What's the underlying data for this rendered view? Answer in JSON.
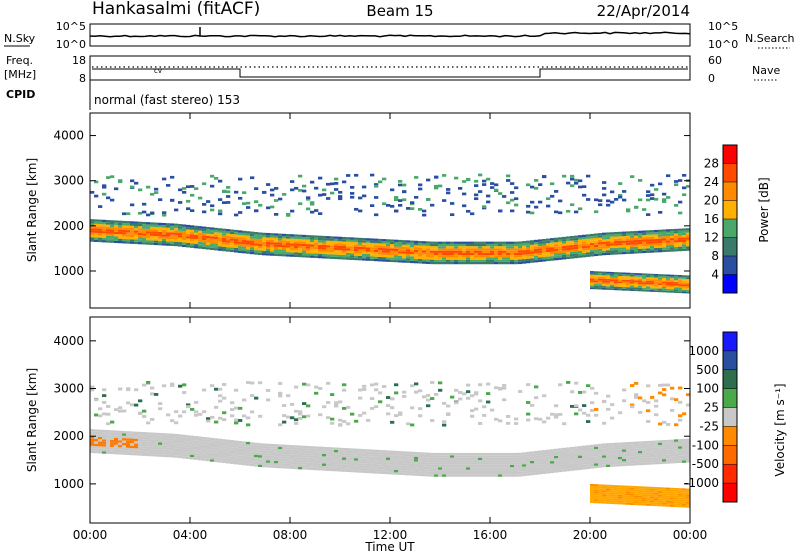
{
  "header": {
    "station": "Hankasalmi (fitACF)",
    "beam": "Beam 15",
    "date": "22/Apr/2014"
  },
  "nsky_panel": {
    "left_label": "N.Sky",
    "right_label": "N.Search",
    "left_ticks": [
      "10^5",
      "10^0"
    ],
    "right_ticks": [
      "10^5",
      "10^0"
    ]
  },
  "freq_panel": {
    "left_label_1": "Freq.",
    "left_label_2": "[MHz]",
    "right_label": "Nave",
    "left_ticks": [
      "18",
      "8"
    ],
    "right_ticks": [
      "60",
      "0"
    ],
    "marker": "cv"
  },
  "cpid": {
    "label": "CPID",
    "program": "normal (fast stereo) 153"
  },
  "power_panel": {
    "ylabel": "Slant Range [km]",
    "yticks": [
      "4000",
      "3000",
      "2000",
      "1000"
    ],
    "scale_label": "Power [dB]",
    "scale_ticks": [
      "28",
      "24",
      "20",
      "16",
      "12",
      "8",
      "4"
    ],
    "scale_colors": [
      "#ff0000",
      "#ff4a00",
      "#ff8a00",
      "#ffb000",
      "#4aa96a",
      "#3a7a6a",
      "#2a4fa0",
      "#0000ff"
    ]
  },
  "velocity_panel": {
    "ylabel": "Slant Range [km]",
    "yticks": [
      "4000",
      "3000",
      "2000",
      "1000"
    ],
    "scale_label": "Velocity [m s⁻¹]",
    "scale_ticks": [
      "1000",
      "500",
      "100",
      "25",
      "-25",
      "-100",
      "-500",
      "-1000"
    ],
    "scale_colors": [
      "#1a1aff",
      "#2a4fa0",
      "#2e6e4e",
      "#4aa94a",
      "#c8c8c8",
      "#ff8a00",
      "#ff6a00",
      "#ff2a00",
      "#ff0000"
    ]
  },
  "time_axis": {
    "label": "Time UT",
    "ticks": [
      "00:00",
      "04:00",
      "08:00",
      "12:00",
      "16:00",
      "20:00",
      "00:00"
    ]
  },
  "chart_data": {
    "type": "heatmap",
    "title": "Hankasalmi (fitACF) Beam 15 22/Apr/2014",
    "xlabel": "Time UT",
    "ylabel": "Slant Range [km]",
    "x_range_hours": [
      0,
      24
    ],
    "y_range_km": [
      180,
      4500
    ],
    "power_range_db": [
      0,
      32
    ],
    "velocity_range_ms": [
      -1000,
      1000
    ],
    "power_bands": [
      {
        "start_h": 0,
        "end_h": 24,
        "center_km": [
          1900,
          1800,
          1600,
          1500,
          1400,
          1400,
          1600,
          1700
        ],
        "width_km": 500,
        "peak_db": 28
      },
      {
        "start_h": 20,
        "end_h": 24,
        "center_km": [
          800,
          750,
          700
        ],
        "width_km": 400,
        "peak_db": 28
      }
    ],
    "velocity_regions": [
      {
        "start_h": 0,
        "end_h": 24,
        "center_km": 1600,
        "velocity_ms": 0
      },
      {
        "start_h": 0,
        "end_h": 2,
        "center_km": 1750,
        "velocity_ms": -300
      },
      {
        "start_h": 20,
        "end_h": 24,
        "center_km": 800,
        "velocity_ms": -200
      },
      {
        "start_h": 20,
        "end_h": 24,
        "center_km": 2500,
        "velocity_ms": -400
      }
    ]
  }
}
